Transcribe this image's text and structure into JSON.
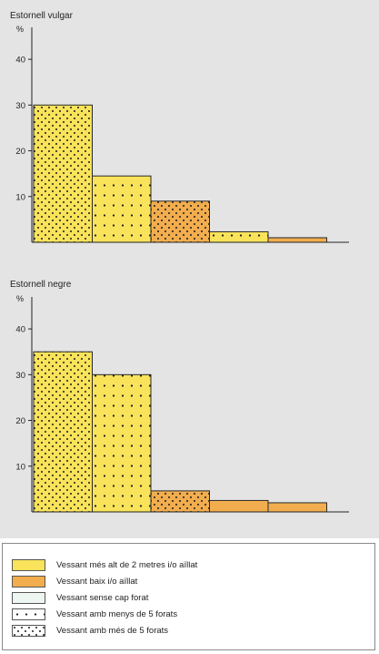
{
  "chart_data": [
    {
      "type": "bar",
      "title": "Estornell vulgar",
      "ylabel": "%",
      "ylim": [
        0,
        45
      ],
      "yticks": [
        10,
        20,
        30,
        40
      ],
      "values": [
        30,
        14.5,
        9,
        2.3,
        1
      ],
      "fills": [
        "#f8e35a",
        "#f8e35a",
        "#f2ad4e",
        "#f8e35a",
        "#f2ad4e"
      ],
      "patterns": [
        "dense",
        "sparse",
        "dense",
        "sparse",
        "none"
      ]
    },
    {
      "type": "bar",
      "title": "Estornell negre",
      "ylabel": "%",
      "ylim": [
        0,
        45
      ],
      "yticks": [
        10,
        20,
        30,
        40
      ],
      "values": [
        35,
        30,
        4.6,
        2.5,
        2
      ],
      "fills": [
        "#f8e35a",
        "#f8e35a",
        "#f2ad4e",
        "#f2ad4e",
        "#f2ad4e"
      ],
      "patterns": [
        "dense",
        "sparse",
        "dense",
        "none",
        "none"
      ]
    }
  ],
  "legend": {
    "items": [
      {
        "label": "Vessant més alt de 2 metres i/o aïllat",
        "fill": "#f8e35a",
        "pattern": "none"
      },
      {
        "label": "Vessant baix i/o aïllat",
        "fill": "#f2ad4e",
        "pattern": "none"
      },
      {
        "label": "Vessant sense cap forat",
        "fill": "#eef6f2",
        "pattern": "none"
      },
      {
        "label": "Vessant amb menys de 5 forats",
        "fill": "#ffffff",
        "pattern": "sparse"
      },
      {
        "label": "Vessant amb més de 5 forats",
        "fill": "#ffffff",
        "pattern": "dense"
      }
    ]
  }
}
